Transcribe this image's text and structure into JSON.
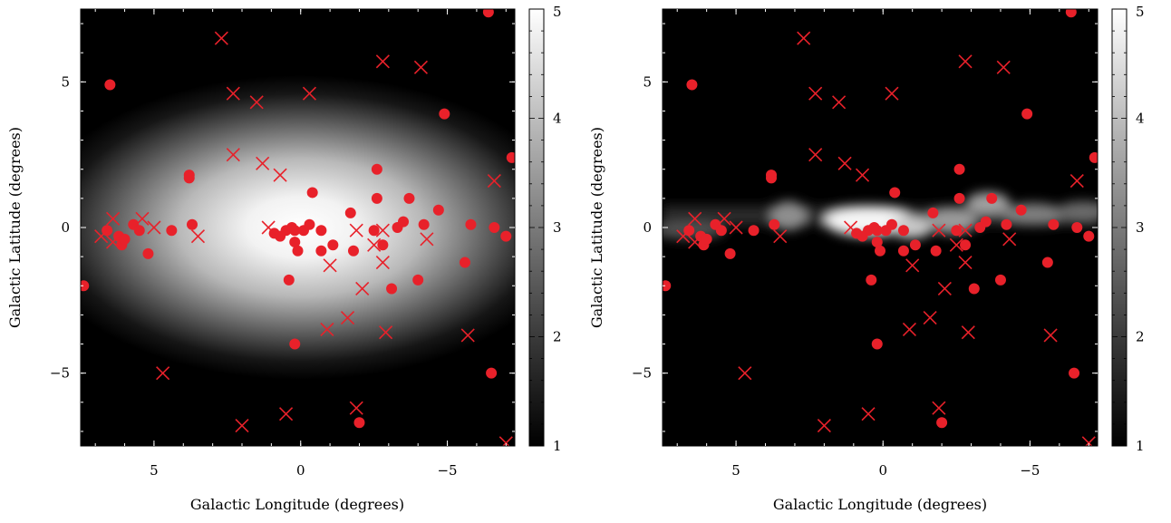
{
  "chart_data": [
    {
      "type": "heatmap",
      "xlabel": "Galactic Longitude (degrees)",
      "ylabel": "Galactic Latitude (degrees)",
      "xlim": [
        7.5,
        -7.3
      ],
      "ylim": [
        -7.5,
        7.5
      ],
      "x_ticks": [
        5,
        0,
        -5
      ],
      "x_tick_labels": [
        "5",
        "0",
        "−5"
      ],
      "y_ticks": [
        5,
        0,
        -5
      ],
      "y_tick_labels": [
        "5",
        "0",
        "−5"
      ],
      "colorbar": {
        "range": [
          1,
          5
        ],
        "ticks": [
          1,
          2,
          3,
          4,
          5
        ],
        "tick_labels": [
          "1",
          "2",
          "3",
          "4",
          "5"
        ],
        "colormap": "gray"
      },
      "background_model": "smooth elliptical emission centred on (0,0)",
      "marker_color": "#e8212a",
      "series": [
        {
          "marker": "circle",
          "points": [
            [
              6.5,
              4.9
            ],
            [
              5.7,
              0.1
            ],
            [
              6.2,
              -0.3
            ],
            [
              6.6,
              -0.1
            ],
            [
              6.1,
              -0.6
            ],
            [
              6.0,
              -0.4
            ],
            [
              5.5,
              -0.1
            ],
            [
              5.2,
              -0.9
            ],
            [
              4.4,
              -0.1
            ],
            [
              3.8,
              1.8
            ],
            [
              3.8,
              1.7
            ],
            [
              3.7,
              0.1
            ],
            [
              7.4,
              -2.0
            ],
            [
              0.9,
              -0.2
            ],
            [
              0.5,
              -0.1
            ],
            [
              0.3,
              0.0
            ],
            [
              0.7,
              -0.3
            ],
            [
              0.2,
              -0.1
            ],
            [
              -0.1,
              -0.1
            ],
            [
              -0.3,
              0.1
            ],
            [
              -0.4,
              1.2
            ],
            [
              -0.7,
              -0.1
            ],
            [
              0.2,
              -0.5
            ],
            [
              0.1,
              -0.8
            ],
            [
              0.4,
              -1.8
            ],
            [
              0.2,
              -4.0
            ],
            [
              -1.1,
              -0.6
            ],
            [
              -0.7,
              -0.8
            ],
            [
              -1.7,
              0.5
            ],
            [
              -1.8,
              -0.8
            ],
            [
              -2.0,
              -6.7
            ],
            [
              -2.5,
              -0.1
            ],
            [
              -2.6,
              1.0
            ],
            [
              -2.6,
              2.0
            ],
            [
              -2.8,
              -0.6
            ],
            [
              -3.1,
              -2.1
            ],
            [
              -3.3,
              0.0
            ],
            [
              -3.5,
              0.2
            ],
            [
              -3.7,
              1.0
            ],
            [
              -4.0,
              -1.8
            ],
            [
              -4.2,
              0.1
            ],
            [
              -4.7,
              0.6
            ],
            [
              -4.9,
              3.9
            ],
            [
              -5.6,
              -1.2
            ],
            [
              -5.8,
              0.1
            ],
            [
              -6.4,
              7.4
            ],
            [
              -6.5,
              -5.0
            ],
            [
              -6.6,
              0.0
            ],
            [
              -7.0,
              -0.3
            ],
            [
              -7.2,
              2.4
            ]
          ]
        },
        {
          "marker": "cross",
          "points": [
            [
              2.7,
              6.5
            ],
            [
              2.3,
              4.6
            ],
            [
              1.5,
              4.3
            ],
            [
              -0.3,
              4.6
            ],
            [
              -2.8,
              5.7
            ],
            [
              -4.1,
              5.5
            ],
            [
              2.3,
              2.5
            ],
            [
              1.3,
              2.2
            ],
            [
              0.7,
              1.8
            ],
            [
              1.1,
              0.0
            ],
            [
              6.8,
              -0.3
            ],
            [
              6.4,
              0.3
            ],
            [
              6.4,
              -0.5
            ],
            [
              5.4,
              0.3
            ],
            [
              5.0,
              0.0
            ],
            [
              3.5,
              -0.3
            ],
            [
              -1.0,
              -1.3
            ],
            [
              -1.9,
              -0.1
            ],
            [
              -2.1,
              -2.1
            ],
            [
              -2.8,
              -0.1
            ],
            [
              -2.5,
              -0.6
            ],
            [
              -2.8,
              -1.2
            ],
            [
              -4.3,
              -0.4
            ],
            [
              -0.9,
              -3.5
            ],
            [
              -1.6,
              -3.1
            ],
            [
              -2.9,
              -3.6
            ],
            [
              -5.7,
              -3.7
            ],
            [
              -6.6,
              1.6
            ],
            [
              4.7,
              -5.0
            ],
            [
              2.0,
              -6.8
            ],
            [
              0.5,
              -6.4
            ],
            [
              -1.9,
              -6.2
            ],
            [
              -7.0,
              -7.4
            ]
          ]
        }
      ]
    },
    {
      "type": "heatmap",
      "xlabel": "Galactic Longitude (degrees)",
      "ylabel": "Galactic Latitude (degrees)",
      "xlim": [
        7.5,
        -7.3
      ],
      "ylim": [
        -7.5,
        7.5
      ],
      "x_ticks": [
        5,
        0,
        -5
      ],
      "x_tick_labels": [
        "5",
        "0",
        "−5"
      ],
      "y_ticks": [
        5,
        0,
        -5
      ],
      "y_tick_labels": [
        "5",
        "0",
        "−5"
      ],
      "colorbar": {
        "range": [
          1,
          5
        ],
        "ticks": [
          1,
          2,
          3,
          4,
          5
        ],
        "tick_labels": [
          "1",
          "2",
          "3",
          "4",
          "5"
        ],
        "colormap": "gray"
      },
      "background_model": "thin clumpy emission band along latitude 0",
      "marker_color": "#e8212a",
      "series": [
        {
          "marker": "circle",
          "points_same_as_panel": 0
        },
        {
          "marker": "cross",
          "points_same_as_panel": 0
        }
      ]
    }
  ]
}
